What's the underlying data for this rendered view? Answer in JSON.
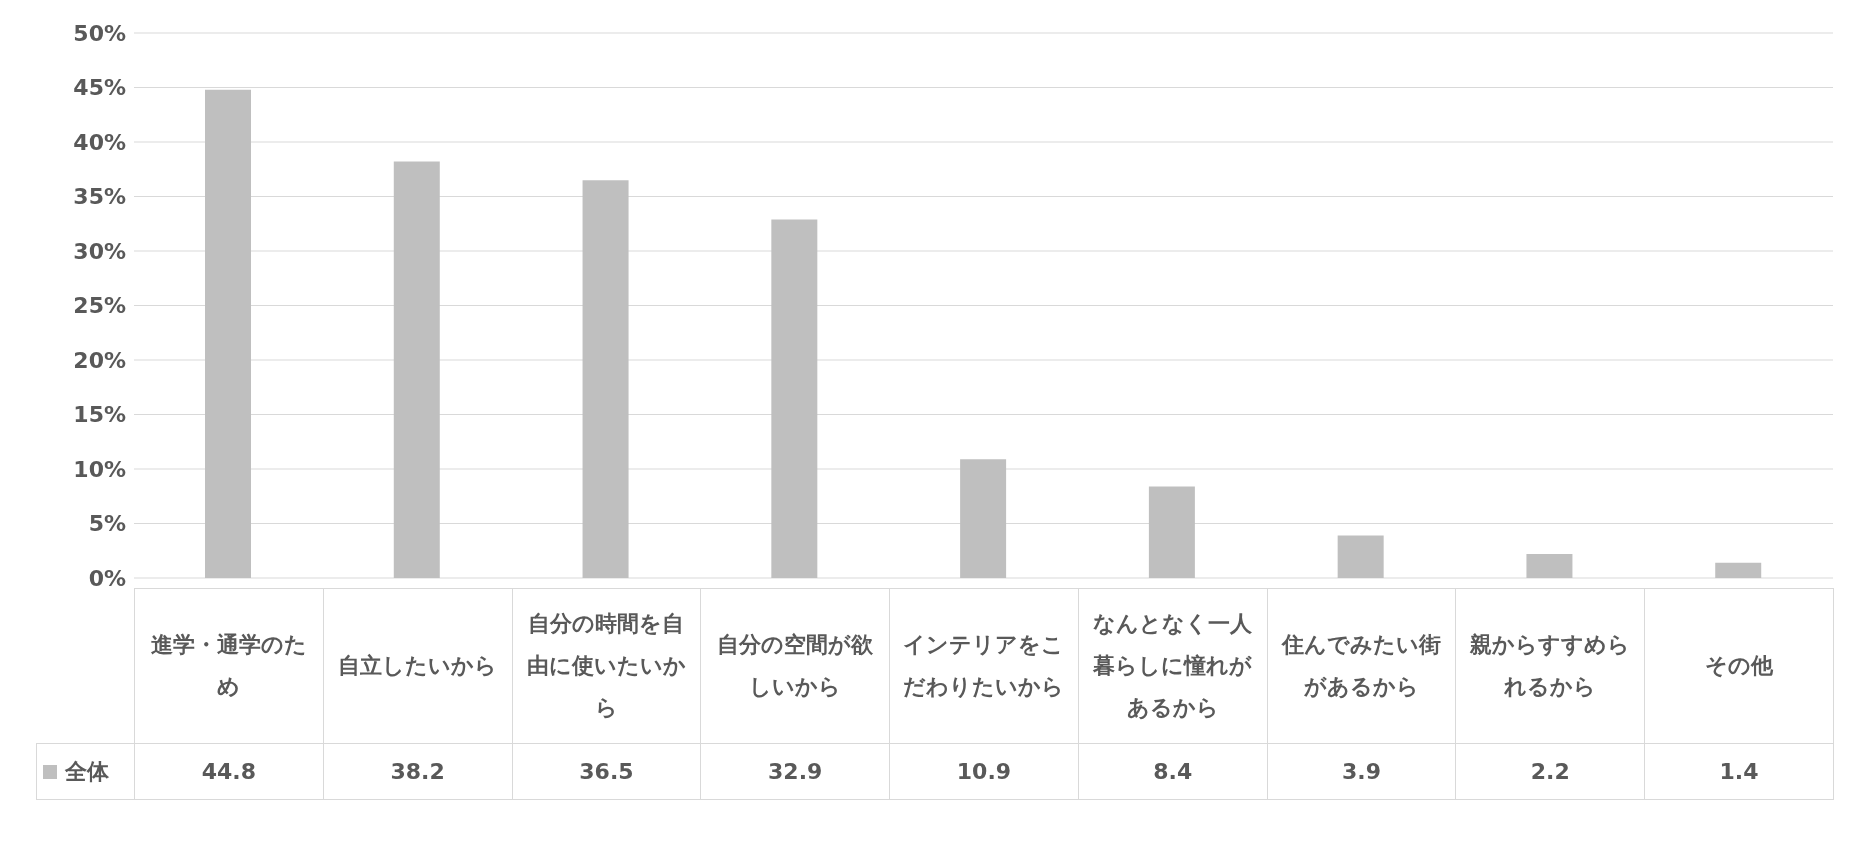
{
  "chart_data": {
    "type": "bar",
    "categories": [
      "進学・通学のため",
      "自立したいから",
      "自分の時間を自由に使いたいから",
      "自分の空間が欲しいから",
      "インテリアをこだわりたいから",
      "なんとなく一人暮らしに憧れがあるから",
      "住んでみたい街があるから",
      "親からすすめられるから",
      "その他"
    ],
    "series": [
      {
        "name": "全体",
        "color": "#bfbfbf",
        "values": [
          44.8,
          38.2,
          36.5,
          32.9,
          10.9,
          8.4,
          3.9,
          2.2,
          1.4
        ]
      }
    ],
    "ylim": [
      0,
      50
    ],
    "yticks": [
      {
        "value": 0,
        "label": "0%"
      },
      {
        "value": 5,
        "label": "5%"
      },
      {
        "value": 10,
        "label": "10%"
      },
      {
        "value": 15,
        "label": "15%"
      },
      {
        "value": 20,
        "label": "20%"
      },
      {
        "value": 25,
        "label": "25%"
      },
      {
        "value": 30,
        "label": "30%"
      },
      {
        "value": 35,
        "label": "35%"
      },
      {
        "value": 40,
        "label": "40%"
      },
      {
        "value": 45,
        "label": "45%"
      },
      {
        "value": 50,
        "label": "50%"
      }
    ],
    "grid": "y",
    "legend": "bottom left",
    "data_labels": true
  }
}
